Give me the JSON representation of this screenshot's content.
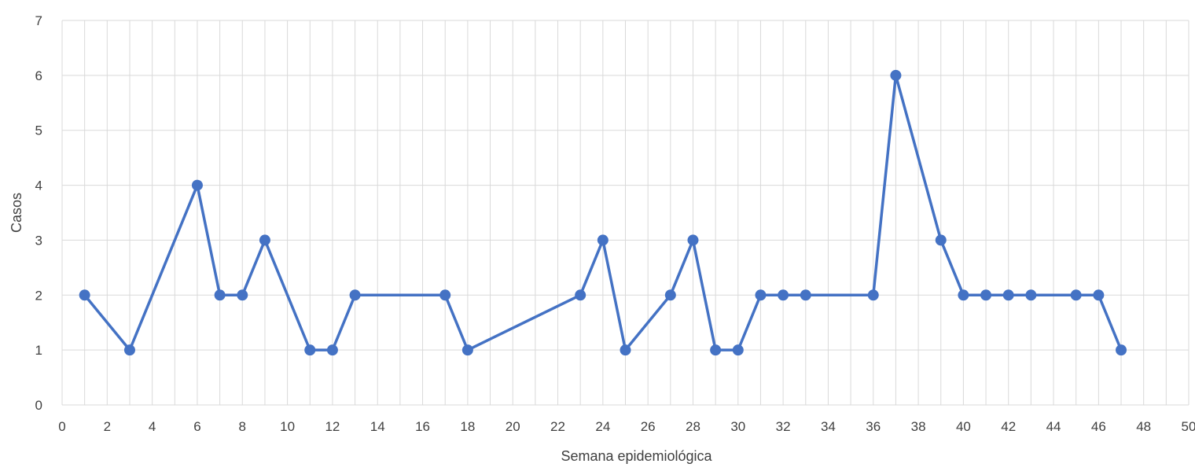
{
  "chart_data": {
    "type": "scatter",
    "style": "lines-and-markers",
    "title": "",
    "xlabel": "Semana epidemiológica",
    "ylabel": "Casos",
    "xlim": [
      0,
      50
    ],
    "ylim": [
      0,
      7
    ],
    "xticks": [
      0,
      2,
      4,
      6,
      8,
      10,
      12,
      14,
      16,
      18,
      20,
      22,
      24,
      26,
      28,
      30,
      32,
      34,
      36,
      38,
      40,
      42,
      44,
      46,
      48,
      50
    ],
    "yticks": [
      0,
      1,
      2,
      3,
      4,
      5,
      6,
      7
    ],
    "xgrid_step": 1,
    "grid": true,
    "legend": "none",
    "series": [
      {
        "color": "#4472C4",
        "x": [
          1,
          3,
          6,
          7,
          8,
          9,
          11,
          12,
          13,
          17,
          18,
          23,
          24,
          25,
          27,
          28,
          29,
          30,
          31,
          32,
          33,
          36,
          37,
          39,
          40,
          41,
          42,
          43,
          45,
          46,
          47
        ],
        "y": [
          2,
          1,
          4,
          2,
          2,
          3,
          1,
          1,
          2,
          2,
          1,
          2,
          3,
          1,
          2,
          3,
          1,
          1,
          2,
          2,
          2,
          2,
          6,
          3,
          2,
          2,
          2,
          2,
          2,
          2,
          1
        ]
      }
    ]
  }
}
